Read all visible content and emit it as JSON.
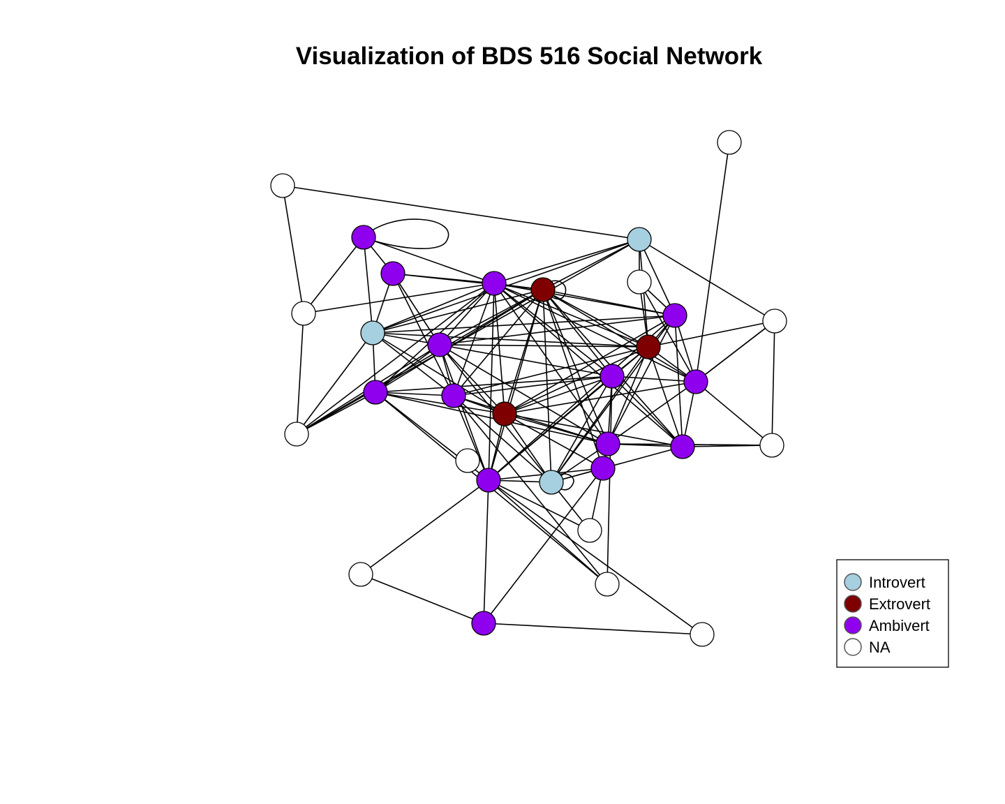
{
  "title": "Visualization of BDS 516 Social Network",
  "colors": {
    "Introvert": "#a6cfe0",
    "Extrovert": "#7f0000",
    "Ambivert": "#8f00ee",
    "NA": "#ffffff"
  },
  "legend": {
    "items": [
      {
        "label": "Introvert",
        "type": "Introvert"
      },
      {
        "label": "Extrovert",
        "type": "Extrovert"
      },
      {
        "label": "Ambivert",
        "type": "Ambivert"
      },
      {
        "label": "NA",
        "type": "NA"
      }
    ]
  },
  "network": {
    "nodes": [
      {
        "id": 1,
        "type": "NA"
      },
      {
        "id": 2,
        "type": "NA"
      },
      {
        "id": 3,
        "type": "Ambivert"
      },
      {
        "id": 4,
        "type": "Introvert"
      },
      {
        "id": 5,
        "type": "Ambivert"
      },
      {
        "id": 6,
        "type": "Ambivert"
      },
      {
        "id": 7,
        "type": "Extrovert"
      },
      {
        "id": 8,
        "type": "NA"
      },
      {
        "id": 9,
        "type": "NA"
      },
      {
        "id": 10,
        "type": "Ambivert"
      },
      {
        "id": 11,
        "type": "NA"
      },
      {
        "id": 12,
        "type": "Introvert"
      },
      {
        "id": 13,
        "type": "Ambivert"
      },
      {
        "id": 14,
        "type": "Extrovert"
      },
      {
        "id": 15,
        "type": "Ambivert"
      },
      {
        "id": 16,
        "type": "Ambivert"
      },
      {
        "id": 17,
        "type": "Ambivert"
      },
      {
        "id": 18,
        "type": "NA"
      },
      {
        "id": 19,
        "type": "Extrovert"
      },
      {
        "id": 20,
        "type": "NA"
      },
      {
        "id": 21,
        "type": "Ambivert"
      },
      {
        "id": 22,
        "type": "Ambivert"
      },
      {
        "id": 23,
        "type": "Ambivert"
      },
      {
        "id": 24,
        "type": "NA"
      },
      {
        "id": 25,
        "type": "Ambivert"
      },
      {
        "id": 26,
        "type": "Ambivert"
      },
      {
        "id": 27,
        "type": "Introvert"
      },
      {
        "id": 28,
        "type": "NA"
      },
      {
        "id": 29,
        "type": "NA"
      },
      {
        "id": 30,
        "type": "Ambivert"
      },
      {
        "id": 31,
        "type": "NA"
      },
      {
        "id": 32,
        "type": "NA"
      }
    ],
    "edges": [
      [
        1,
        2
      ],
      [
        2,
        3
      ],
      [
        3,
        5
      ],
      [
        3,
        6
      ],
      [
        3,
        4
      ],
      [
        5,
        6
      ],
      [
        5,
        4
      ],
      [
        5,
        7
      ],
      [
        5,
        10
      ],
      [
        5,
        15
      ],
      [
        2,
        6
      ],
      [
        2,
        11
      ],
      [
        11,
        4
      ],
      [
        11,
        6
      ],
      [
        11,
        7
      ],
      [
        11,
        10
      ],
      [
        11,
        13
      ],
      [
        11,
        12
      ],
      [
        1,
        12
      ],
      [
        12,
        14
      ],
      [
        12,
        18
      ],
      [
        12,
        9
      ],
      [
        12,
        6
      ],
      [
        12,
        7
      ],
      [
        12,
        16
      ],
      [
        12,
        4
      ],
      [
        6,
        7
      ],
      [
        6,
        10
      ],
      [
        6,
        13
      ],
      [
        6,
        14
      ],
      [
        6,
        19
      ],
      [
        6,
        15
      ],
      [
        6,
        22
      ],
      [
        6,
        21
      ],
      [
        6,
        26
      ],
      [
        6,
        4
      ],
      [
        6,
        16
      ],
      [
        6,
        17
      ],
      [
        6,
        23
      ],
      [
        7,
        4
      ],
      [
        7,
        10
      ],
      [
        7,
        13
      ],
      [
        7,
        14
      ],
      [
        7,
        15
      ],
      [
        7,
        16
      ],
      [
        7,
        17
      ],
      [
        7,
        19
      ],
      [
        7,
        21
      ],
      [
        7,
        22
      ],
      [
        7,
        23
      ],
      [
        7,
        25
      ],
      [
        7,
        26
      ],
      [
        7,
        27
      ],
      [
        4,
        10
      ],
      [
        4,
        13
      ],
      [
        4,
        15
      ],
      [
        4,
        14
      ],
      [
        4,
        19
      ],
      [
        4,
        16
      ],
      [
        10,
        13
      ],
      [
        10,
        15
      ],
      [
        10,
        19
      ],
      [
        10,
        14
      ],
      [
        10,
        16
      ],
      [
        10,
        21
      ],
      [
        10,
        22
      ],
      [
        10,
        26
      ],
      [
        10,
        27
      ],
      [
        13,
        15
      ],
      [
        13,
        19
      ],
      [
        13,
        21
      ],
      [
        13,
        22
      ],
      [
        13,
        26
      ],
      [
        13,
        20
      ],
      [
        15,
        19
      ],
      [
        15,
        21
      ],
      [
        15,
        22
      ],
      [
        15,
        26
      ],
      [
        15,
        27
      ],
      [
        15,
        14
      ],
      [
        19,
        14
      ],
      [
        19,
        16
      ],
      [
        19,
        17
      ],
      [
        19,
        21
      ],
      [
        19,
        22
      ],
      [
        19,
        23
      ],
      [
        19,
        25
      ],
      [
        19,
        26
      ],
      [
        19,
        27
      ],
      [
        14,
        9
      ],
      [
        14,
        16
      ],
      [
        14,
        17
      ],
      [
        14,
        21
      ],
      [
        14,
        22
      ],
      [
        14,
        23
      ],
      [
        14,
        26
      ],
      [
        14,
        27
      ],
      [
        14,
        18
      ],
      [
        16,
        17
      ],
      [
        16,
        22
      ],
      [
        16,
        23
      ],
      [
        16,
        26
      ],
      [
        16,
        27
      ],
      [
        17,
        18
      ],
      [
        17,
        23
      ],
      [
        17,
        22
      ],
      [
        17,
        21
      ],
      [
        17,
        24
      ],
      [
        17,
        8
      ],
      [
        18,
        17
      ],
      [
        18,
        24
      ],
      [
        24,
        23
      ],
      [
        24,
        22
      ],
      [
        9,
        17
      ],
      [
        9,
        16
      ],
      [
        20,
        21
      ],
      [
        20,
        26
      ],
      [
        20,
        15
      ],
      [
        21,
        26
      ],
      [
        21,
        22
      ],
      [
        21,
        23
      ],
      [
        21,
        27
      ],
      [
        22,
        23
      ],
      [
        22,
        24
      ],
      [
        22,
        27
      ],
      [
        22,
        25
      ],
      [
        23,
        27
      ],
      [
        26,
        27
      ],
      [
        26,
        28
      ],
      [
        26,
        29
      ],
      [
        26,
        30
      ],
      [
        26,
        25
      ],
      [
        27,
        28
      ],
      [
        27,
        25
      ],
      [
        25,
        28
      ],
      [
        25,
        30
      ],
      [
        29,
        30
      ],
      [
        30,
        31
      ],
      [
        31,
        26
      ]
    ]
  }
}
